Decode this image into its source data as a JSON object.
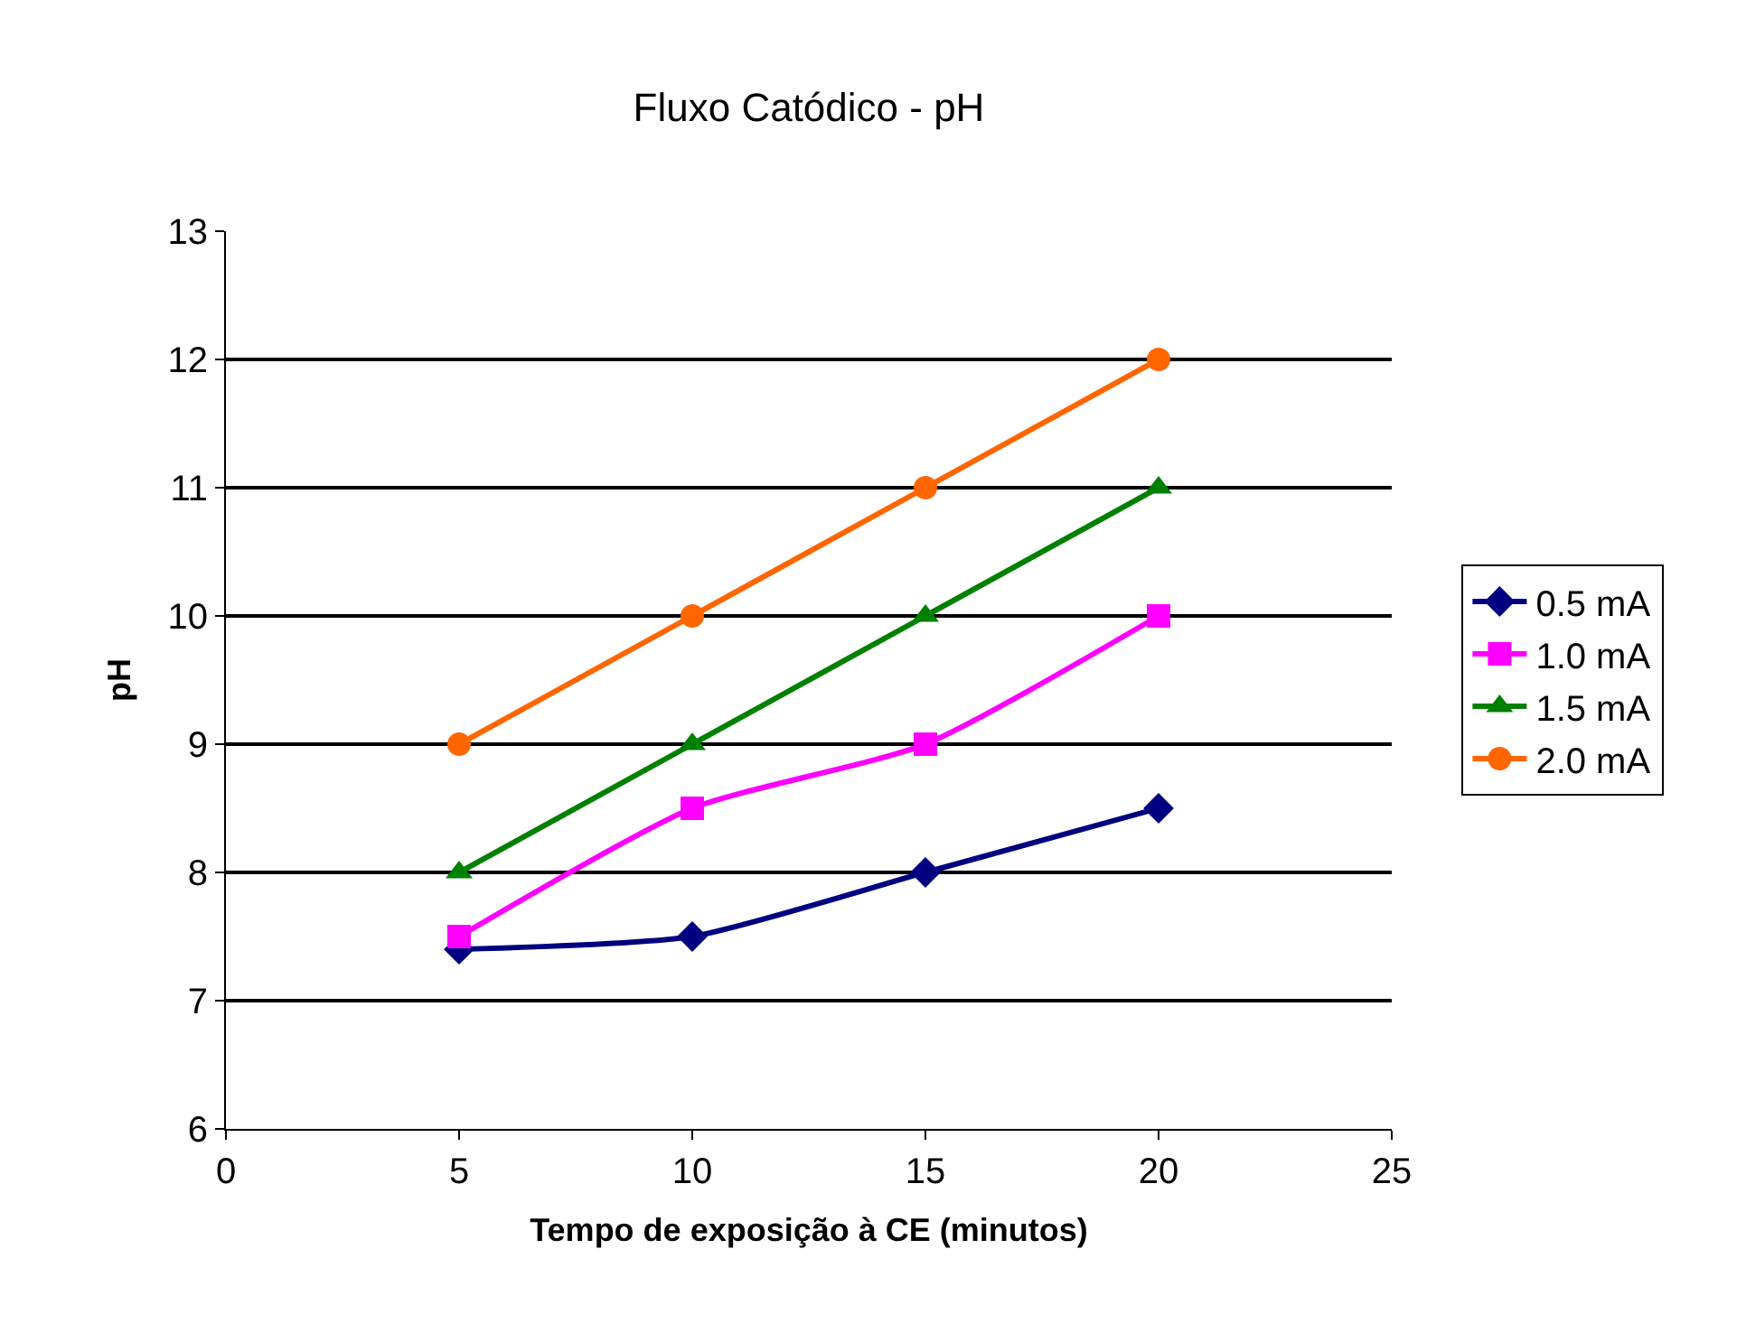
{
  "chart_data": {
    "type": "line",
    "title": "Fluxo Catódico - pH",
    "xlabel": "Tempo de exposição à CE (minutos)",
    "ylabel": "pH",
    "x": [
      5,
      10,
      15,
      20
    ],
    "series": [
      {
        "name": "0.5 mA",
        "color": "#000080",
        "marker": "diamond",
        "values": [
          7.4,
          7.5,
          8.0,
          8.5
        ]
      },
      {
        "name": "1.0 mA",
        "color": "#ff00ff",
        "marker": "square",
        "values": [
          7.5,
          8.5,
          9.0,
          10.0
        ]
      },
      {
        "name": "1.5 mA",
        "color": "#008000",
        "marker": "triangle",
        "values": [
          8,
          9,
          10,
          11
        ]
      },
      {
        "name": "2.0 mA",
        "color": "#ff6600",
        "marker": "circle",
        "values": [
          9,
          10,
          11,
          12
        ]
      }
    ],
    "xlim": [
      0,
      25
    ],
    "xticks": [
      0,
      5,
      10,
      15,
      20,
      25
    ],
    "ylim": [
      6,
      13
    ],
    "yticks": [
      6,
      7,
      8,
      9,
      10,
      11,
      12,
      13
    ],
    "grid": "y",
    "legend": "right",
    "line_style": "solid"
  }
}
